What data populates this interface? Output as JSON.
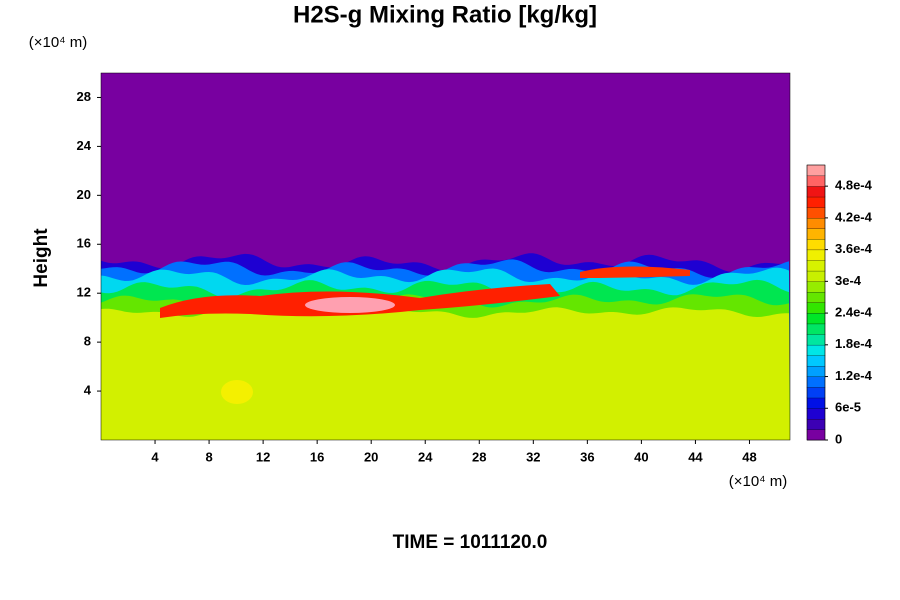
{
  "chart_data": {
    "type": "heatmap",
    "title": "H2S-g Mixing Ratio [kg/kg]",
    "ylabel": "Height",
    "xunit": "(×10⁴ m)",
    "yunit": "(×10⁴ m)",
    "footer": "TIME = 1011120.0",
    "xlim": [
      0,
      51
    ],
    "xticks": [
      4,
      8,
      12,
      16,
      20,
      24,
      28,
      32,
      36,
      40,
      44,
      48
    ],
    "ylim": [
      0,
      30
    ],
    "yticks": [
      4,
      8,
      12,
      16,
      20,
      24,
      28
    ],
    "colorbar_lim": [
      0,
      0.00052
    ],
    "colorbar_ticks": [
      0,
      {
        "value": 6e-05,
        "label": "6e-5"
      },
      {
        "value": 0.00012,
        "label": "1.2e-4"
      },
      {
        "value": 0.00018,
        "label": "1.8e-4"
      },
      {
        "value": 0.00024,
        "label": "2.4e-4"
      },
      {
        "value": 0.0003,
        "label": "3e-4"
      },
      {
        "value": 0.00036,
        "label": "3.6e-4"
      },
      {
        "value": 0.00042,
        "label": "4.2e-4"
      },
      {
        "value": 0.00048,
        "label": "4.8e-4"
      }
    ],
    "colorscale": [
      "#7800a0",
      "#3c00b4",
      "#1e00d2",
      "#0010e6",
      "#0040f5",
      "#0070ff",
      "#00a0ff",
      "#00c8ff",
      "#00e6e6",
      "#00e6a0",
      "#00e664",
      "#00e628",
      "#32e600",
      "#64e600",
      "#96ec00",
      "#c8f000",
      "#d7f200",
      "#f0f000",
      "#ffdc00",
      "#ffb400",
      "#ff8c00",
      "#ff5000",
      "#ff2000",
      "#f01414",
      "#ff6464",
      "#ffa0a0"
    ]
  }
}
